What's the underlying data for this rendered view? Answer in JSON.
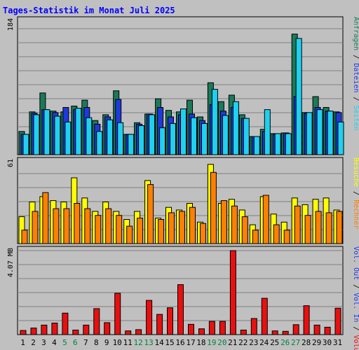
{
  "chart_data": {
    "type": "bar",
    "title": "Tages-Statistik im Monat Juli 2025",
    "categories": [
      "1",
      "2",
      "3",
      "4",
      "5",
      "6",
      "7",
      "8",
      "9",
      "10",
      "11",
      "12",
      "13",
      "14",
      "15",
      "16",
      "17",
      "18",
      "19",
      "20",
      "21",
      "22",
      "23",
      "24",
      "25",
      "26",
      "27",
      "28",
      "29",
      "30",
      "31"
    ],
    "weekend_days": [
      "5",
      "6",
      "12",
      "13",
      "19",
      "20",
      "26",
      "27"
    ],
    "panels": [
      {
        "name": "top",
        "ymax_label": "184",
        "ymax": 184,
        "series": [
          {
            "name": "Anfragen",
            "color": "#1a7a5a",
            "values": [
              32,
              59,
              85,
              60,
              59,
              67,
              75,
              47,
              55,
              88,
              28,
              44,
              56,
              77,
              61,
              59,
              75,
              52,
              99,
              73,
              82,
              55,
              25,
              35,
              29,
              30,
              166,
              58,
              80,
              65,
              59
            ]
          },
          {
            "name": "Dateien",
            "color": "#1e3adb",
            "values": [
              28,
              57,
              62,
              58,
              65,
              62,
              65,
              42,
              52,
              76,
              28,
              42,
              56,
              65,
              52,
              55,
              56,
              47,
              69,
              60,
              65,
              50,
              25,
              32,
              28,
              30,
              80,
              57,
              65,
              60,
              58
            ]
          },
          {
            "name": "Seiten",
            "color": "#20d0f0",
            "values": [
              28,
              55,
              62,
              53,
              45,
              64,
              51,
              32,
              48,
              44,
              28,
              40,
              55,
              37,
              43,
              63,
              51,
              43,
              90,
              54,
              73,
              50,
              25,
              62,
              29,
              29,
              160,
              58,
              62,
              60,
              45
            ]
          }
        ]
      },
      {
        "name": "middle",
        "ymax_label": "61",
        "ymax": 61,
        "series": [
          {
            "name": "Besuche",
            "color": "#ffff00",
            "values": [
              20,
              31,
              35,
              32,
              31,
              49,
              34,
              24,
              31,
              24,
              18,
              24,
              47,
              19,
              27,
              25,
              30,
              16,
              59,
              30,
              33,
              25,
              14,
              35,
              22,
              16,
              34,
              29,
              33,
              34,
              25
            ]
          },
          {
            "name": "Rechner",
            "color": "#ff8000",
            "values": [
              10,
              24,
              38,
              26,
              26,
              30,
              26,
              21,
              26,
              21,
              13,
              19,
              44,
              18,
              23,
              24,
              27,
              15,
              53,
              32,
              28,
              20,
              10,
              36,
              14,
              10,
              28,
              21,
              24,
              23,
              24
            ]
          }
        ]
      },
      {
        "name": "bottom",
        "ymax_label": "4.07 MB",
        "ymax": 4.07,
        "series": [
          {
            "name": "Vol. In",
            "color": "#1e3adb",
            "values": [
              0,
              0,
              0,
              0,
              0,
              0,
              0,
              0,
              0,
              0,
              0,
              0,
              0,
              0,
              0,
              0,
              0,
              0,
              0,
              0,
              0,
              0,
              0,
              0,
              0,
              0,
              0,
              0,
              0,
              0,
              0
            ]
          },
          {
            "name": "Vol. Out",
            "color": "#1e3adb",
            "values": [
              0,
              0,
              0,
              0,
              0,
              0,
              0,
              0,
              0,
              0,
              0,
              0,
              0,
              0,
              0,
              0,
              0,
              0,
              0,
              0,
              0,
              0,
              0,
              0,
              0,
              0,
              0,
              0,
              0,
              0,
              0
            ]
          },
          {
            "name": "Volumen",
            "color": "#e81010",
            "values": [
              0.2,
              0.32,
              0.46,
              0.56,
              1.04,
              0.22,
              0.46,
              1.26,
              0.58,
              2.0,
              0.18,
              0.24,
              1.66,
              0.98,
              1.3,
              2.42,
              0.5,
              0.28,
              0.64,
              0.64,
              4.07,
              0.22,
              0.78,
              1.76,
              0.18,
              0.16,
              0.48,
              1.4,
              0.46,
              0.36,
              1.28
            ]
          }
        ]
      }
    ],
    "right_legend": [
      {
        "text": "Anfragen",
        "color": "#1a7a5a"
      },
      {
        "text": "Dateien",
        "color": "#1e3adb"
      },
      {
        "text": "Seiten",
        "color": "#20d0f0"
      },
      {
        "text": "Besuche",
        "color": "#ffff00"
      },
      {
        "text": "Rechner",
        "color": "#ff8000"
      },
      {
        "text": "Vol. Out",
        "color": "#1e3adb"
      },
      {
        "text": "Vol. In",
        "color": "#1e3adb"
      },
      {
        "text": "Volumen",
        "color": "#e81010"
      }
    ],
    "colors": {
      "background": "#c0c0c0",
      "title": "#0000ff",
      "gridline": "#808080",
      "weekday_label": "#000000",
      "weekend_label": "#008040"
    }
  }
}
